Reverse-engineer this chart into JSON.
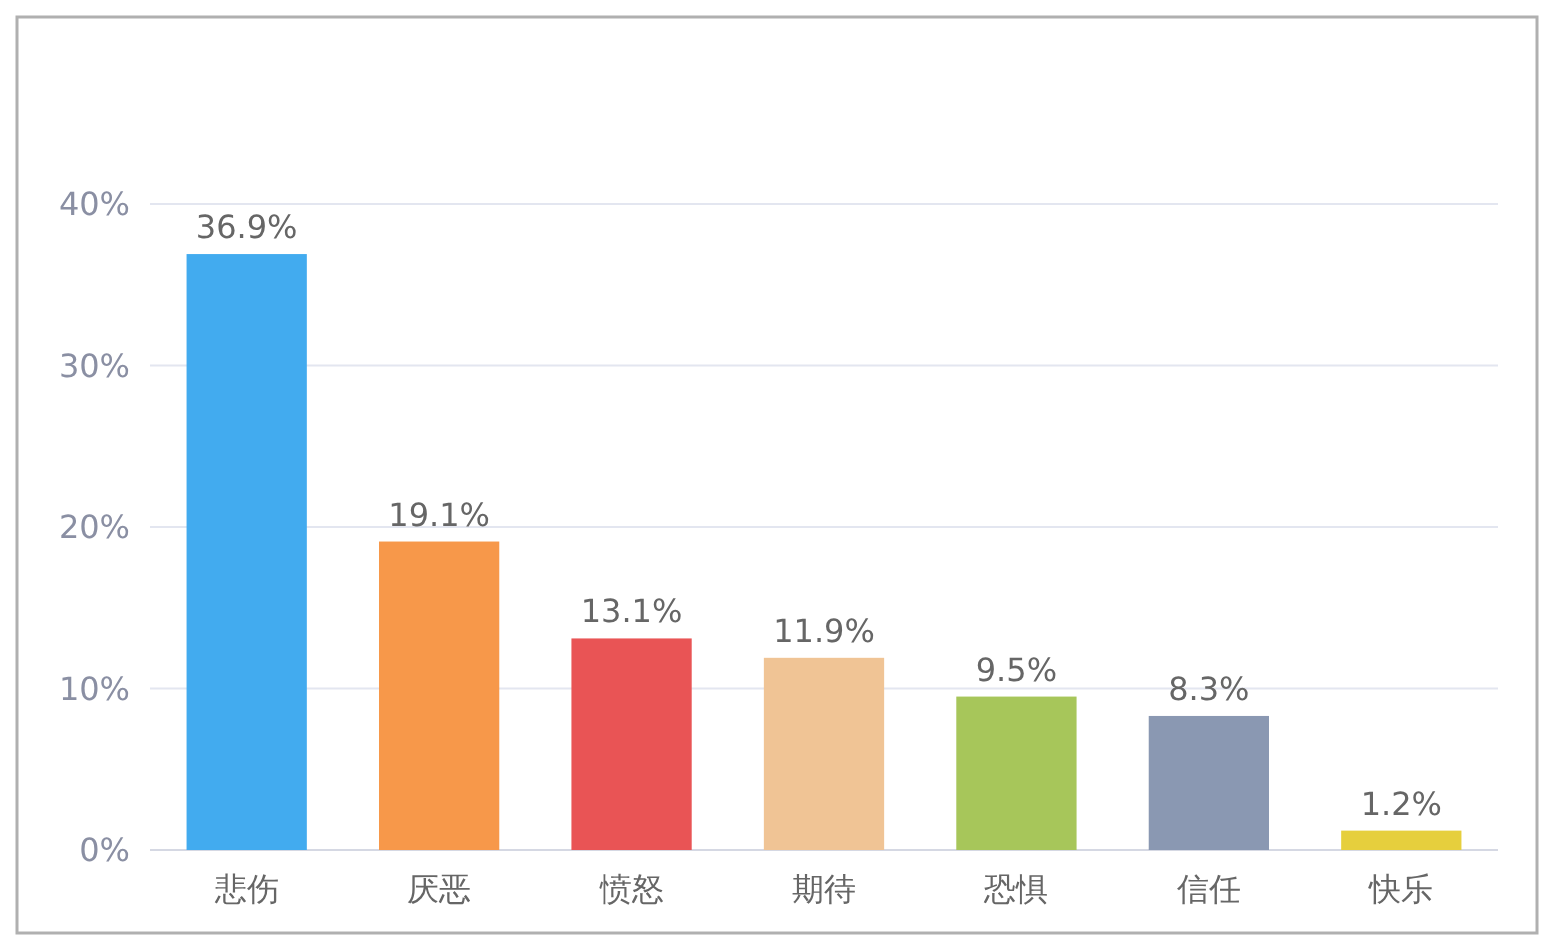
{
  "chart_data": {
    "type": "bar",
    "categories": [
      "悲伤",
      "厌恶",
      "愤怒",
      "期待",
      "恐惧",
      "信任",
      "快乐"
    ],
    "values": [
      36.9,
      19.1,
      13.1,
      11.9,
      9.5,
      8.3,
      1.2
    ],
    "colors": [
      "#42abef",
      "#f7984a",
      "#e95455",
      "#f0c495",
      "#a7c65a",
      "#8a98b2",
      "#e6cf3d"
    ],
    "value_labels": [
      "36.9%",
      "19.1%",
      "13.1%",
      "11.9%",
      "9.5%",
      "8.3%",
      "1.2%"
    ],
    "ylim": [
      0,
      40
    ],
    "yticks": [
      {
        "value": 0,
        "label": "0%"
      },
      {
        "value": 10,
        "label": "10%"
      },
      {
        "value": 20,
        "label": "20%"
      },
      {
        "value": 30,
        "label": "30%"
      },
      {
        "value": 40,
        "label": "40%"
      }
    ],
    "grid": "y"
  }
}
